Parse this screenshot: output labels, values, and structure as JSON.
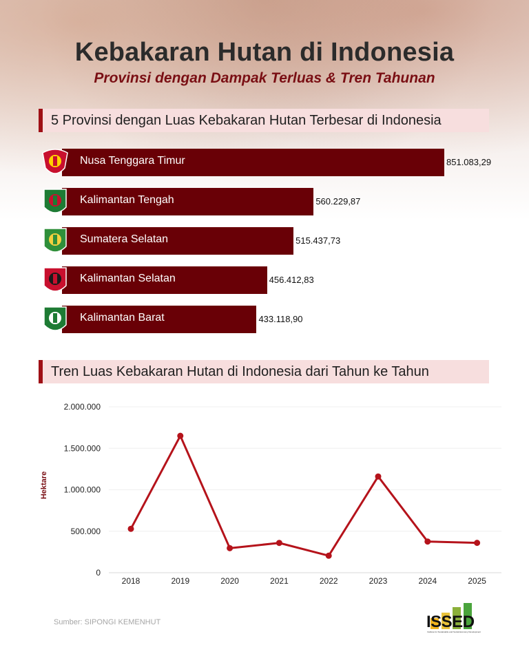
{
  "header": {
    "title": "Kebakaran Hutan di Indonesia",
    "subtitle": "Provinsi dengan Dampak Terluas & Tren Tahunan"
  },
  "colors": {
    "bar": "#690006",
    "line": "#b5131b",
    "accent": "#9f1016",
    "section_bg": "#f7dede"
  },
  "chart_data": [
    {
      "type": "bar",
      "title": "5 Provinsi dengan Luas Kebakaran Hutan Terbesar di Indonesia",
      "orientation": "horizontal",
      "categories": [
        "Nusa Tenggara Timur",
        "Kalimantan Tengah",
        "Sumatera Selatan",
        "Kalimantan Selatan",
        "Kalimantan Barat"
      ],
      "values": [
        851083.29,
        560229.87,
        515437.73,
        456412.83,
        433118.9
      ],
      "value_labels": [
        "851.083,29",
        "560.229,87",
        "515.437,73",
        "456.412,83",
        "433.118,90"
      ],
      "emblems": [
        "ntt-emblem-icon",
        "kalteng-emblem-icon",
        "sumsel-emblem-icon",
        "kalsel-emblem-icon",
        "kalbar-emblem-icon"
      ]
    },
    {
      "type": "line",
      "title": "Tren Luas Kebakaran Hutan di Indonesia dari Tahun ke Tahun",
      "ylabel": "Hektare",
      "x": [
        "2018",
        "2019",
        "2020",
        "2021",
        "2022",
        "2023",
        "2024",
        "2025"
      ],
      "values": [
        529000,
        1650000,
        296000,
        359000,
        205000,
        1160000,
        376000,
        360000
      ],
      "ylim": [
        0,
        2000000
      ],
      "yticks": [
        0,
        500000,
        1000000,
        1500000,
        2000000
      ],
      "ytick_labels": [
        "0",
        "500.000",
        "1.000.000",
        "1.500.000",
        "2.000.000"
      ],
      "grid": true
    }
  ],
  "footer": {
    "source": "Sumber: SIPONGI KEMENHUT",
    "logo_text": "ISSED",
    "logo_tagline": "Institute for Sustainable and Social Economy Development",
    "logo_icon": "issed-bar-chart-logo-icon"
  }
}
